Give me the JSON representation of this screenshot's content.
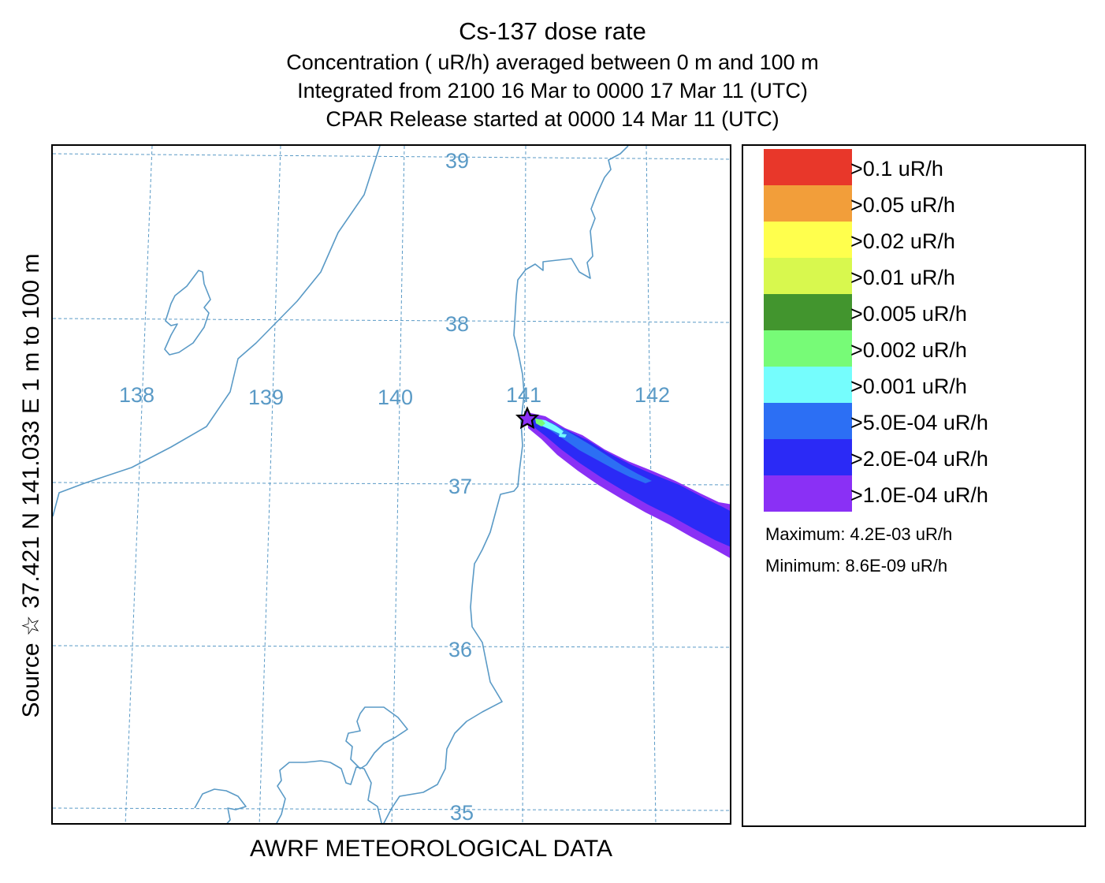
{
  "titles": {
    "main": "Cs-137 dose rate",
    "line1": "Concentration  ( uR/h) averaged between     0 m and   100 m",
    "line2": "Integrated from 2100 16 Mar to 0000 17 Mar 11 (UTC)",
    "line3": "CPAR Release started at 0000 14 Mar 11 (UTC)"
  },
  "side_label": "Source ☆ 37.421  N 141.033  E       1 m to   100 m",
  "footer": "AWRF METEOROLOGICAL DATA",
  "map": {
    "lat_labels": [
      "39",
      "38",
      "37",
      "36",
      "35"
    ],
    "lon_labels": [
      "138",
      "139",
      "140",
      "141",
      "142"
    ],
    "source_marker": "star-icon",
    "colors": {
      "coast": "#5a9ac6",
      "grid": "#5a9ac6"
    }
  },
  "legend": {
    "items": [
      {
        "label": ">0.1  uR/h",
        "color": "#e8372a"
      },
      {
        "label": ">0.05  uR/h",
        "color": "#f29e3a"
      },
      {
        "label": ">0.02  uR/h",
        "color": "#ffff4d"
      },
      {
        "label": ">0.01  uR/h",
        "color": "#d8f84e"
      },
      {
        "label": ">0.005  uR/h",
        "color": "#42952e"
      },
      {
        "label": ">0.002  uR/h",
        "color": "#77fb77"
      },
      {
        "label": ">0.001  uR/h",
        "color": "#75fdfd"
      },
      {
        "label": ">5.0E-04  uR/h",
        "color": "#2c6ff4"
      },
      {
        "label": ">2.0E-04  uR/h",
        "color": "#2b2af6"
      },
      {
        "label": ">1.0E-04  uR/h",
        "color": "#8a30f5"
      }
    ],
    "maximum": "Maximum: 4.2E-03  uR/h",
    "minimum": "Minimum: 8.6E-09  uR/h"
  }
}
